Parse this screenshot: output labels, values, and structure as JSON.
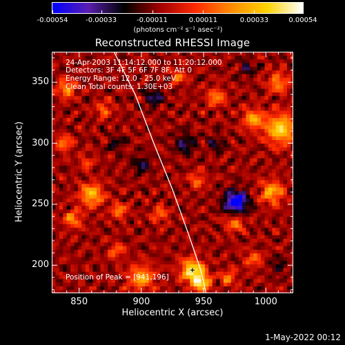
{
  "chart_data": {
    "type": "heatmap",
    "title": "Reconstructed RHESSI Image",
    "xlabel": "Heliocentric X (arcsec)",
    "ylabel": "Heliocentric Y (arcsec)",
    "xlim": [
      828,
      1022
    ],
    "ylim": [
      177,
      375
    ],
    "xticks": [
      850,
      900,
      950,
      1000
    ],
    "yticks": [
      200,
      250,
      300,
      350
    ],
    "colorbar": {
      "range": [
        -0.00054,
        0.00054
      ],
      "tick_labels": [
        "-0.00054",
        "-0.00033",
        "-0.00011",
        "0.00011",
        "0.00033",
        "0.00054"
      ],
      "tick_values": [
        -0.00054,
        -0.00033,
        -0.00011,
        0.00011,
        0.00033,
        0.00054
      ],
      "units": "(photons cm⁻² s⁻¹ asec⁻²)",
      "colormap": [
        "#0000ff",
        "#5a1fb0",
        "#000000",
        "#a00000",
        "#ff2a00",
        "#ff8c00",
        "#ffd200",
        "#ffffff"
      ]
    },
    "annotations": {
      "time": "24-Apr-2003 11:14:12.000 to 11:20:12.000",
      "detectors": "Detectors: 3F 4F 5F 6F 7F 8F, Att 0",
      "energy": "Energy Range: 12.0 - 25.0 keV",
      "clean": "Clean     Total counts: 1.30E+03",
      "peak": "Position of Peak = [941,196]"
    },
    "peak": {
      "x": 941,
      "y": 196
    },
    "limb": [
      [
        878,
        375
      ],
      [
        895,
        340
      ],
      [
        910,
        300
      ],
      [
        925,
        262
      ],
      [
        938,
        225
      ],
      [
        948,
        195
      ],
      [
        952,
        177
      ]
    ],
    "hot_regions": [
      {
        "x": 941,
        "y": 196,
        "r": 9,
        "v": 0.00054
      },
      {
        "x": 948,
        "y": 186,
        "r": 7,
        "v": 0.0005
      },
      {
        "x": 900,
        "y": 190,
        "r": 10,
        "v": 0.00036
      },
      {
        "x": 860,
        "y": 258,
        "r": 9,
        "v": 0.00042
      },
      {
        "x": 845,
        "y": 238,
        "r": 7,
        "v": 0.0003
      },
      {
        "x": 882,
        "y": 245,
        "r": 6,
        "v": 0.0003
      },
      {
        "x": 1012,
        "y": 312,
        "r": 12,
        "v": 0.00048
      },
      {
        "x": 990,
        "y": 320,
        "r": 8,
        "v": 0.00036
      },
      {
        "x": 1005,
        "y": 260,
        "r": 9,
        "v": 0.00038
      },
      {
        "x": 1010,
        "y": 350,
        "r": 8,
        "v": 0.0003
      },
      {
        "x": 840,
        "y": 345,
        "r": 7,
        "v": 0.00034
      },
      {
        "x": 838,
        "y": 300,
        "r": 6,
        "v": 0.0003
      },
      {
        "x": 870,
        "y": 328,
        "r": 6,
        "v": 0.00026
      },
      {
        "x": 930,
        "y": 355,
        "r": 6,
        "v": 0.00024
      },
      {
        "x": 960,
        "y": 338,
        "r": 7,
        "v": 0.0003
      },
      {
        "x": 975,
        "y": 235,
        "r": 7,
        "v": 0.00028
      },
      {
        "x": 915,
        "y": 242,
        "r": 6,
        "v": 0.00026
      },
      {
        "x": 945,
        "y": 270,
        "r": 6,
        "v": 0.00026
      },
      {
        "x": 990,
        "y": 205,
        "r": 7,
        "v": 0.00022
      },
      {
        "x": 970,
        "y": 190,
        "r": 6,
        "v": 0.00028
      },
      {
        "x": 880,
        "y": 212,
        "r": 6,
        "v": 0.00024
      },
      {
        "x": 856,
        "y": 285,
        "r": 5,
        "v": 0.00022
      }
    ],
    "cold_regions": [
      {
        "x": 976,
        "y": 252,
        "r": 9,
        "v": -0.00054
      },
      {
        "x": 910,
        "y": 338,
        "r": 7,
        "v": -0.00024
      },
      {
        "x": 900,
        "y": 283,
        "r": 7,
        "v": -0.0002
      },
      {
        "x": 935,
        "y": 300,
        "r": 8,
        "v": -0.00022
      },
      {
        "x": 960,
        "y": 300,
        "r": 6,
        "v": -0.00018
      },
      {
        "x": 985,
        "y": 362,
        "r": 6,
        "v": -0.00018
      },
      {
        "x": 880,
        "y": 300,
        "r": 6,
        "v": -0.00016
      },
      {
        "x": 1010,
        "y": 200,
        "r": 6,
        "v": -0.00016
      }
    ]
  },
  "footer": "1-May-2022 00:12"
}
